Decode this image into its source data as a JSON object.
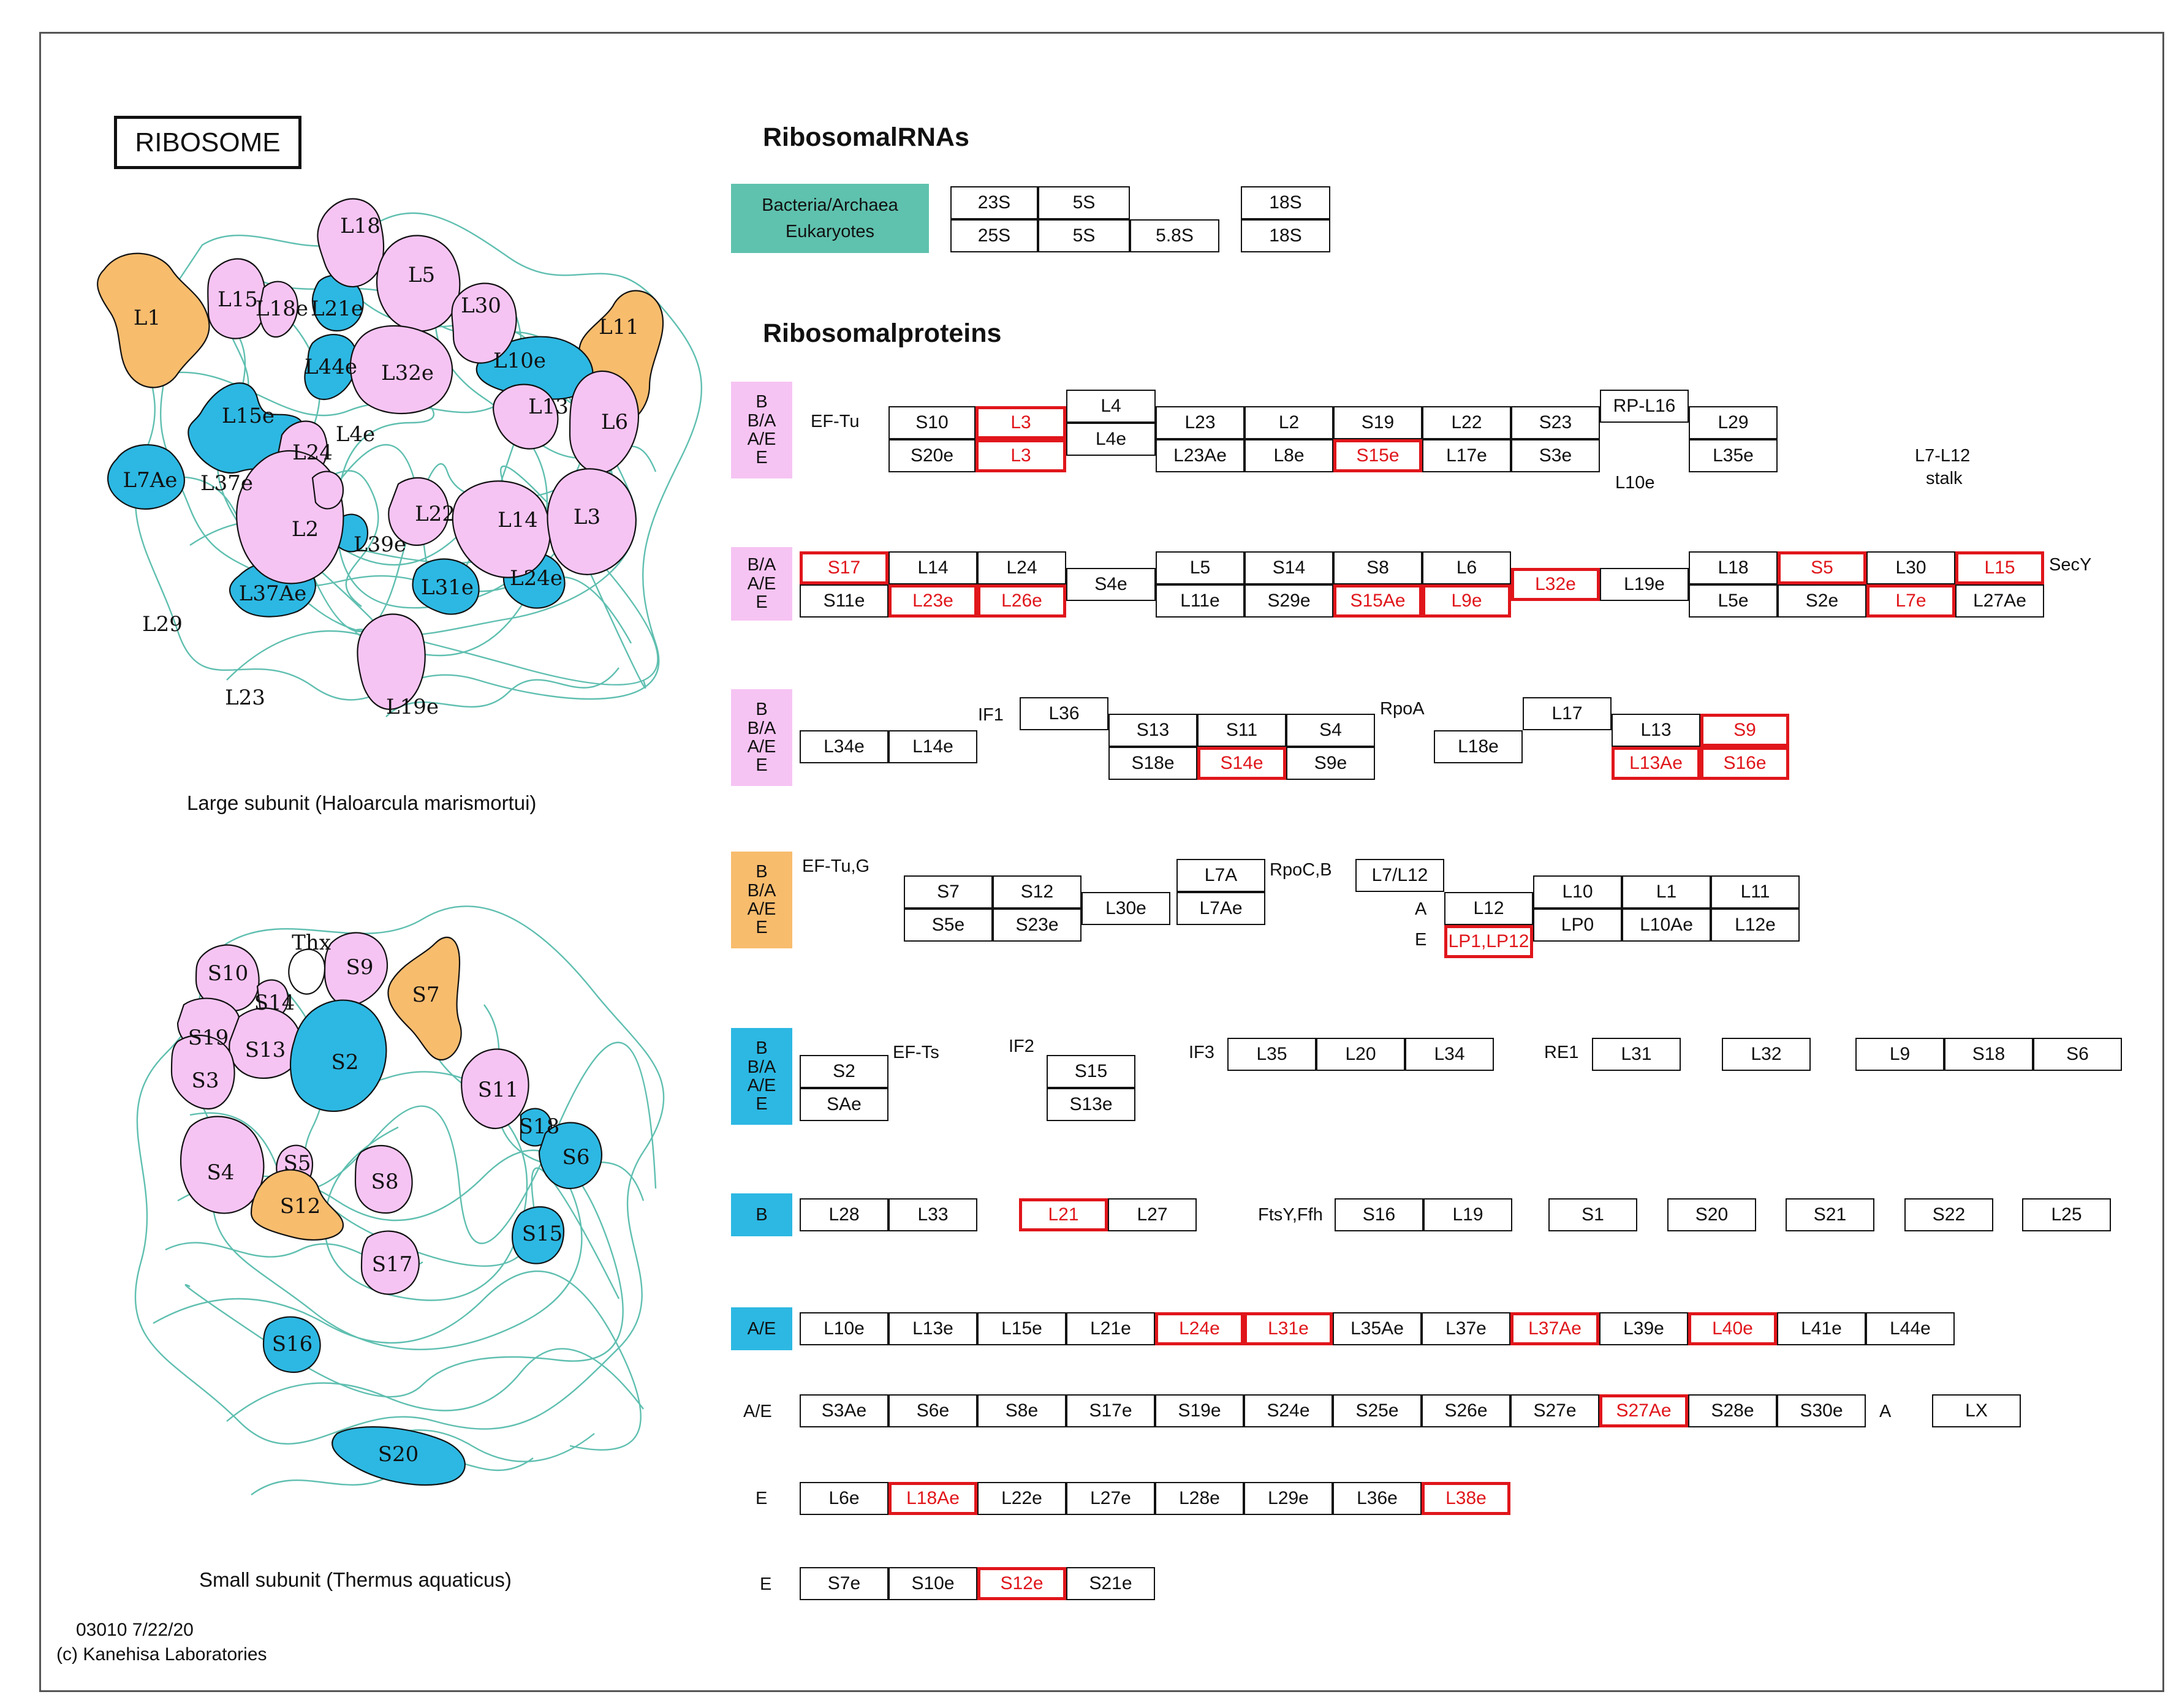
{
  "title": "RIBOSOME",
  "headings": {
    "rna": "RibosomalRNAs",
    "proteins": "Ribosomalproteins"
  },
  "captions": {
    "large": "Large subunit (Haloarcula marismortui)",
    "small": "Small subunit (Thermus aquaticus)"
  },
  "credit": {
    "id": "03010 7/22/20",
    "copyright": "(c)  Kanehisa Laboratories"
  },
  "colors": {
    "pink": "#f6c4f3",
    "orange": "#f8bc6d",
    "blue": "#2cb8e3",
    "teal": "#5fc2ae",
    "red": "#e0161b",
    "rna_strand": "#5fbfb0"
  },
  "rna": {
    "legend": [
      "Bacteria/Archaea",
      "Eukaryotes"
    ],
    "row1": [
      "23S",
      "5S",
      "18S"
    ],
    "row2": [
      "25S",
      "5S",
      "5.8S",
      "18S"
    ]
  },
  "large_subunit": {
    "labels": [
      "L18",
      "L5",
      "L15",
      "L18e",
      "L21e",
      "L30",
      "L11",
      "L1",
      "L44e",
      "L10e",
      "L15e",
      "L32e",
      "L13",
      "L7Ae",
      "L4e",
      "L6",
      "L24",
      "L37e",
      "L2",
      "L22",
      "L14",
      "L3",
      "L39e",
      "L29",
      "L37Ae",
      "L31e",
      "L24e",
      "L23",
      "L19e"
    ]
  },
  "small_subunit": {
    "labels": [
      "Thx",
      "S9",
      "S10",
      "S14",
      "S7",
      "S19",
      "S13",
      "S2",
      "S3",
      "S11",
      "S18",
      "S6",
      "S5",
      "S4",
      "S12",
      "S8",
      "S15",
      "S17",
      "S16",
      "S20"
    ]
  },
  "groups": {
    "g1": [
      "B",
      "B/A",
      "A/E",
      "E"
    ],
    "g2": [
      "B/A",
      "A/E",
      "E"
    ],
    "g3": [
      "B",
      "B/A",
      "A/E",
      "E"
    ],
    "g4": [
      "B",
      "B/A",
      "A/E",
      "E"
    ],
    "g5": [
      "B",
      "B/A",
      "A/E",
      "E"
    ],
    "g6": [
      "B"
    ],
    "g7": [
      "A/E"
    ],
    "g8": [
      "A/E"
    ],
    "g9": [
      "E"
    ],
    "g10": [
      "E"
    ]
  },
  "free_labels": {
    "ef_tu": "EF-Tu",
    "l10e": "L10e",
    "l7_l12": "L7-L12",
    "stalk": "stalk",
    "secy": "SecY",
    "if1": "IF1",
    "rpoa": "RpoA",
    "ef_tug": "EF-Tu,G",
    "rpocb": "RpoC,B",
    "a": "A",
    "e": "E",
    "ef_ts": "EF-Ts",
    "if2": "IF2",
    "if3": "IF3",
    "re1": "RE1",
    "ftsy": "FtsY,Ffh",
    "a2": "A"
  },
  "boxes": {
    "r1": [
      "S10",
      "L3",
      "L4",
      "L23",
      "L2",
      "S19",
      "L22",
      "S23",
      "RP-L16",
      "L29",
      "S20e",
      "L3",
      "L4e",
      "L23Ae",
      "L8e",
      "S15e",
      "L17e",
      "S3e",
      "L35e"
    ],
    "r2": [
      "S17",
      "L14",
      "L24",
      "S4e",
      "L5",
      "S14",
      "S8",
      "L6",
      "L32e",
      "L19e",
      "L18",
      "S5",
      "L30",
      "L15",
      "S11e",
      "L23e",
      "L26e",
      "L11e",
      "S29e",
      "S15Ae",
      "L9e",
      "L5e",
      "S2e",
      "L7e",
      "L27Ae"
    ],
    "r3": [
      "L36",
      "S13",
      "S11",
      "S4",
      "L17",
      "L13",
      "S9",
      "L34e",
      "L14e",
      "S18e",
      "S14e",
      "S9e",
      "L18e",
      "L13Ae",
      "S16e"
    ],
    "r4": [
      "S7",
      "S12",
      "L30e",
      "L7A",
      "L7/L12",
      "L12",
      "L10",
      "L1",
      "L11",
      "S5e",
      "S23e",
      "L7Ae",
      "LP1,LP12",
      "LP0",
      "L10Ae",
      "L12e"
    ],
    "r5": [
      "S2",
      "SAe",
      "S15",
      "S13e",
      "L35",
      "L20",
      "L34",
      "L31",
      "L32",
      "L9",
      "S18",
      "S6"
    ],
    "r6": [
      "L28",
      "L33",
      "L21",
      "L27",
      "S16",
      "L19",
      "S1",
      "S20",
      "S21",
      "S22",
      "L25"
    ],
    "r7": [
      "L10e",
      "L13e",
      "L15e",
      "L21e",
      "L24e",
      "L31e",
      "L35Ae",
      "L37e",
      "L37Ae",
      "L39e",
      "L40e",
      "L41e",
      "L44e"
    ],
    "r8": [
      "S3Ae",
      "S6e",
      "S8e",
      "S17e",
      "S19e",
      "S24e",
      "S25e",
      "S26e",
      "S27e",
      "S27Ae",
      "S28e",
      "S30e",
      "LX"
    ],
    "r9": [
      "L6e",
      "L18Ae",
      "L22e",
      "L27e",
      "L28e",
      "L29e",
      "L36e",
      "L38e"
    ],
    "r10": [
      "S7e",
      "S10e",
      "S12e",
      "S21e"
    ]
  }
}
